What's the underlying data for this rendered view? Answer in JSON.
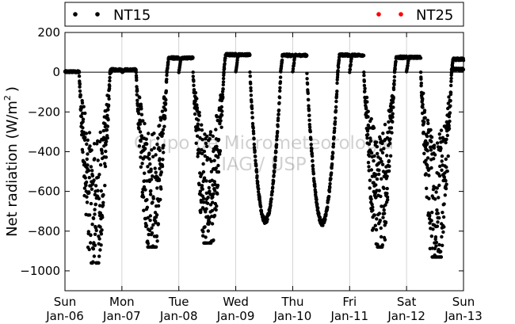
{
  "chart_data": {
    "type": "scatter",
    "ylabel_main": "Net radiation (W/m",
    "ylabel_sup": "2",
    "ylabel_end": ")",
    "ylim": [
      -1100,
      200
    ],
    "yticks": [
      200,
      0,
      -200,
      -400,
      -600,
      -800,
      -1000
    ],
    "ytick_labels": [
      "200",
      "0",
      "−200",
      "−400",
      "−600",
      "−800",
      "−1000"
    ],
    "xlim": [
      0,
      7
    ],
    "xticks": [
      {
        "day": "Sun",
        "date": "Jan-06"
      },
      {
        "day": "Mon",
        "date": "Jan-07"
      },
      {
        "day": "Tue",
        "date": "Jan-08"
      },
      {
        "day": "Wed",
        "date": "Jan-09"
      },
      {
        "day": "Thu",
        "date": "Jan-10"
      },
      {
        "day": "Fri",
        "date": "Jan-11"
      },
      {
        "day": "Sat",
        "date": "Jan-12"
      },
      {
        "day": "Sun",
        "date": "Jan-13"
      }
    ],
    "grid": "vertical",
    "legend_placement": "top",
    "series": [
      {
        "name": "NT15",
        "color": "#000000",
        "days": [
          {
            "positive": 12,
            "min": -960,
            "scatter": true
          },
          {
            "positive": 72,
            "min": -880,
            "scatter": true
          },
          {
            "positive": 88,
            "min": -860,
            "scatter": true
          },
          {
            "positive": 85,
            "min": -750,
            "scatter": false
          },
          {
            "positive": 86,
            "min": -760,
            "scatter": false
          },
          {
            "positive": 75,
            "min": -880,
            "scatter": true
          },
          {
            "positive": 65,
            "min": -930,
            "scatter": true
          }
        ]
      },
      {
        "name": "NT25",
        "color": "#ff0000",
        "days": []
      }
    ],
    "watermark_line1": "Grupo de Micrometeorologia",
    "watermark_line2": "IAG / USP"
  }
}
